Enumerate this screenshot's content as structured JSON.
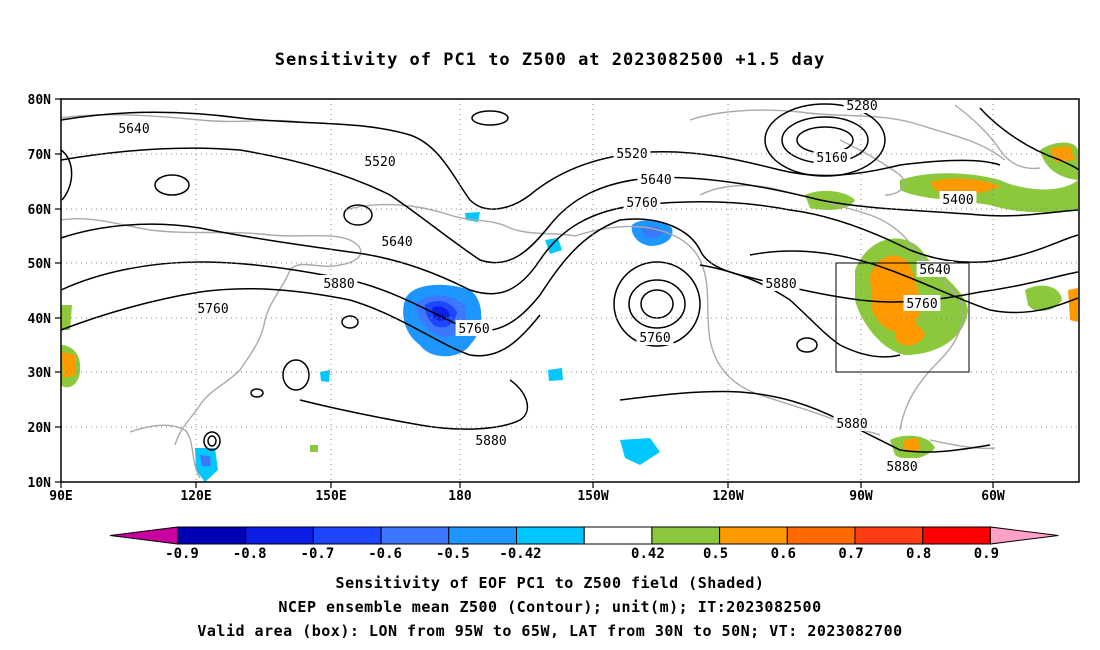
{
  "title": "Sensitivity of PC1 to Z500 at 2023082500 +1.5 day",
  "map": {
    "lat_labels": [
      "80N",
      "70N",
      "60N",
      "50N",
      "40N",
      "30N",
      "20N",
      "10N"
    ],
    "lon_labels": [
      "90E",
      "120E",
      "150E",
      "180",
      "150W",
      "120W",
      "90W",
      "60W"
    ],
    "contour_labels": [
      {
        "text": "5640"
      },
      {
        "text": "5520"
      },
      {
        "text": "5520"
      },
      {
        "text": "5640"
      },
      {
        "text": "5760"
      },
      {
        "text": "5640"
      },
      {
        "text": "5760"
      },
      {
        "text": "5880"
      },
      {
        "text": "5760"
      },
      {
        "text": "5760"
      },
      {
        "text": "5880"
      },
      {
        "text": "5280"
      },
      {
        "text": "5160"
      },
      {
        "text": "5400"
      },
      {
        "text": "5640"
      },
      {
        "text": "5760"
      },
      {
        "text": "5880"
      },
      {
        "text": "5880"
      },
      {
        "text": "5880"
      }
    ],
    "valid_box": {
      "lon_west": "95W",
      "lon_east": "65W",
      "lat_south": "30N",
      "lat_north": "50N"
    }
  },
  "colorbar": {
    "labels": [
      "-0.9",
      "-0.8",
      "-0.7",
      "-0.6",
      "-0.5",
      "-0.42",
      "0.42",
      "0.5",
      "0.6",
      "0.7",
      "0.8",
      "0.9"
    ],
    "colors": [
      "#0000b4",
      "#0a1ee6",
      "#1e46ff",
      "#3c78ff",
      "#1e96ff",
      "#00c8ff",
      "#ffffff",
      "#8cc83c",
      "#ff9900",
      "#ff6a00",
      "#ff3c14",
      "#ff0000"
    ],
    "low_end_color": "#c800a0",
    "high_end_color": "#ffa0c8"
  },
  "footer": {
    "line1": "Sensitivity of EOF PC1 to Z500 field (Shaded)",
    "line2": "NCEP ensemble mean Z500 (Contour); unit(m); IT:2023082500",
    "line3": "Valid area (box): LON from 95W to 65W, LAT from 30N to 50N; VT: 2023082700"
  }
}
